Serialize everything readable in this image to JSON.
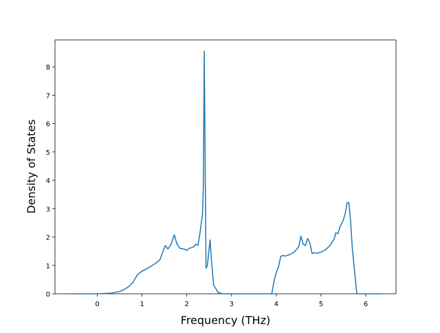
{
  "chart_data": {
    "type": "line",
    "xlabel": "Frequency (THz)",
    "ylabel": "Density of States",
    "xlim": [
      -0.946,
      6.676
    ],
    "ylim": [
      0,
      8.95
    ],
    "xticks": [
      0,
      1,
      2,
      3,
      4,
      5,
      6
    ],
    "yticks": [
      0,
      1,
      2,
      3,
      4,
      5,
      6,
      7,
      8
    ],
    "series": [
      {
        "color": "#1f77b4",
        "x": [
          -0.6,
          0.0,
          0.3,
          0.5,
          0.6,
          0.7,
          0.8,
          0.85,
          0.9,
          1.0,
          1.1,
          1.2,
          1.3,
          1.4,
          1.48,
          1.52,
          1.58,
          1.65,
          1.72,
          1.78,
          1.85,
          1.95,
          2.0,
          2.05,
          2.15,
          2.2,
          2.25,
          2.3,
          2.35,
          2.37,
          2.39,
          2.43,
          2.46,
          2.52,
          2.55,
          2.6,
          2.7,
          2.8,
          3.9,
          3.95,
          4.0,
          4.05,
          4.1,
          4.15,
          4.2,
          4.3,
          4.4,
          4.5,
          4.55,
          4.6,
          4.65,
          4.7,
          4.75,
          4.8,
          4.85,
          4.9,
          5.0,
          5.1,
          5.2,
          5.3,
          5.33,
          5.38,
          5.42,
          5.5,
          5.55,
          5.58,
          5.62,
          5.66,
          5.7,
          5.75,
          5.8,
          6.0,
          6.33
        ],
        "values": [
          0,
          0,
          0.02,
          0.08,
          0.15,
          0.25,
          0.4,
          0.55,
          0.68,
          0.8,
          0.88,
          0.97,
          1.07,
          1.2,
          1.55,
          1.7,
          1.58,
          1.75,
          2.08,
          1.75,
          1.6,
          1.57,
          1.53,
          1.6,
          1.65,
          1.75,
          1.7,
          2.2,
          2.8,
          3.8,
          8.55,
          0.9,
          1.0,
          1.9,
          1.2,
          0.3,
          0.05,
          0,
          0,
          0.45,
          0.75,
          0.95,
          1.32,
          1.35,
          1.33,
          1.38,
          1.47,
          1.65,
          2.03,
          1.75,
          1.7,
          1.95,
          1.8,
          1.42,
          1.45,
          1.43,
          1.47,
          1.55,
          1.7,
          1.95,
          2.15,
          2.12,
          2.35,
          2.6,
          2.9,
          3.2,
          3.22,
          2.6,
          1.6,
          0.8,
          0,
          0,
          0
        ]
      }
    ]
  }
}
